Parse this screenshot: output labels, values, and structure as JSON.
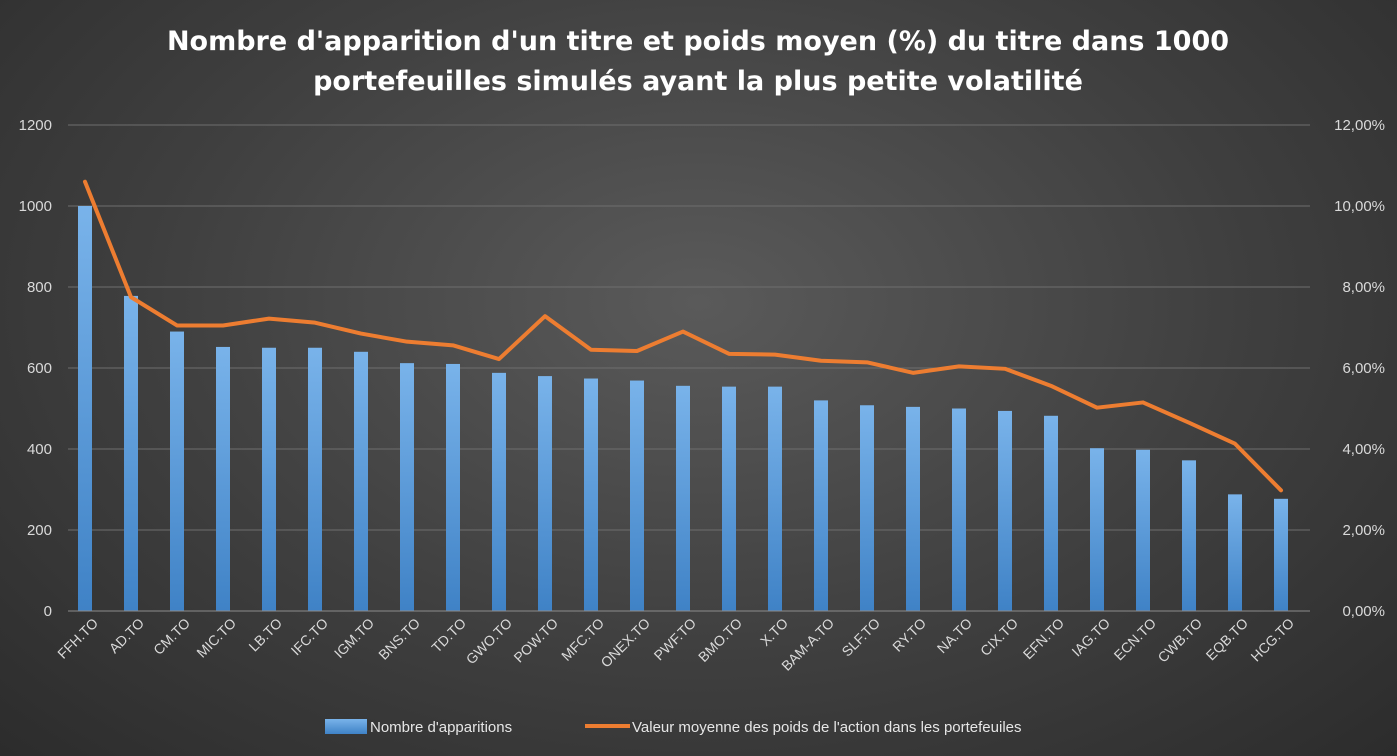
{
  "chart_data": {
    "type": "bar",
    "title_lines": [
      "Nombre d'apparition d'un titre et poids moyen (%) du titre dans 1000",
      "portefeuilles simulés ayant la plus petite volatilité"
    ],
    "categories": [
      "FFH.TO",
      "AD.TO",
      "CM.TO",
      "MIC.TO",
      "LB.TO",
      "IFC.TO",
      "IGM.TO",
      "BNS.TO",
      "TD.TO",
      "GWO.TO",
      "POW.TO",
      "MFC.TO",
      "ONEX.TO",
      "PWF.TO",
      "BMO.TO",
      "X.TO",
      "BAM-A.TO",
      "SLF.TO",
      "RY.TO",
      "NA.TO",
      "CIX.TO",
      "EFN.TO",
      "IAG.TO",
      "ECN.TO",
      "CWB.TO",
      "EQB.TO",
      "HCG.TO"
    ],
    "series": [
      {
        "name": "Nombre d'apparitions",
        "type": "bar",
        "axis": "left",
        "color": "#5b9bd5",
        "values": [
          1000,
          778,
          690,
          652,
          650,
          650,
          640,
          612,
          610,
          588,
          580,
          574,
          569,
          556,
          554,
          554,
          520,
          508,
          504,
          500,
          494,
          482,
          402,
          398,
          372,
          288,
          277
        ]
      },
      {
        "name": "Valeur moyenne des poids de l'action dans les portefeuiles",
        "type": "line",
        "axis": "right",
        "color": "#ed7d31",
        "values": [
          10.6,
          7.75,
          7.05,
          7.05,
          7.22,
          7.12,
          6.85,
          6.65,
          6.56,
          6.22,
          7.28,
          6.45,
          6.42,
          6.9,
          6.35,
          6.33,
          6.18,
          6.14,
          5.88,
          6.04,
          5.98,
          5.56,
          5.02,
          5.15,
          4.65,
          4.13,
          2.98
        ]
      }
    ],
    "y_left": {
      "ylim": [
        0,
        1200
      ],
      "ticks": [
        "0",
        "200",
        "400",
        "600",
        "800",
        "1000",
        "1200"
      ]
    },
    "y_right": {
      "ylim": [
        0,
        12
      ],
      "ticks": [
        "0,00%",
        "2,00%",
        "4,00%",
        "6,00%",
        "8,00%",
        "10,00%",
        "12,00%"
      ]
    },
    "grid": true,
    "legend_position": "bottom"
  }
}
